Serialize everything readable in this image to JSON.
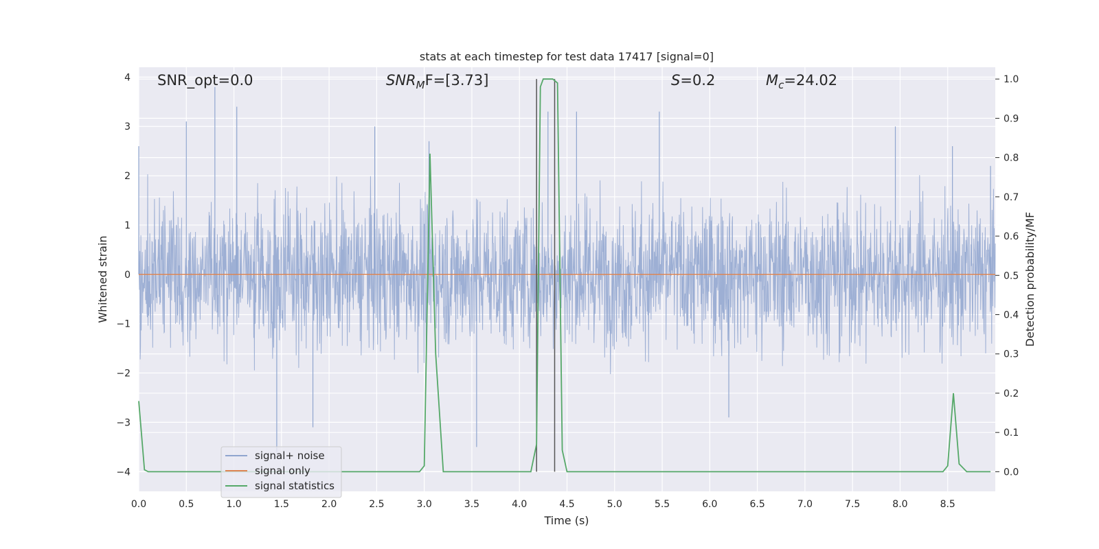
{
  "chart_data": {
    "type": "line",
    "title": "stats at each timestep for test data 17417 [signal=0]",
    "xlabel": "Time (s)",
    "ylabel_left": "Whitened strain",
    "ylabel_right": "Detection probability/MF",
    "xlim": [
      0.0,
      9.0
    ],
    "ylim_left": [
      -4.4,
      4.2
    ],
    "ylim_right": [
      -0.05,
      1.03
    ],
    "x_ticks": [
      "0.0",
      "0.5",
      "1.0",
      "1.5",
      "2.0",
      "2.5",
      "3.0",
      "3.5",
      "4.0",
      "4.5",
      "5.0",
      "5.5",
      "6.0",
      "6.5",
      "7.0",
      "7.5",
      "8.0",
      "8.5"
    ],
    "y_left_ticks": [
      "4",
      "3",
      "2",
      "1",
      "0",
      "−1",
      "−2",
      "−3",
      "−4"
    ],
    "y_right_ticks": [
      "1.0",
      "0.9",
      "0.8",
      "0.7",
      "0.6",
      "0.5",
      "0.4",
      "0.3",
      "0.2",
      "0.1",
      "0.0"
    ],
    "grid": true,
    "legend_position": "lower-left",
    "annotations": {
      "snr_opt": "SNR_opt=0.0",
      "snr_mf_base": "SNR",
      "snr_mf_sub": "M",
      "snr_mf_rest": "F=[3.73]",
      "s_italic": "S",
      "s_rest": "=0.2",
      "mc_base": "M",
      "mc_sub": "c",
      "mc_rest": "=24.02"
    },
    "series": [
      {
        "name": "signal+ noise",
        "color": "#8fa5cf",
        "axis": "left",
        "style": "dense noise, approx amplitude ±1.6 with peaks to about ±3.8",
        "envelope_peaks_x": [
          0.0,
          0.5,
          0.8,
          1.03,
          1.45,
          1.83,
          2.48,
          3.05,
          3.55,
          4.3,
          4.6,
          5.47,
          6.2,
          7.95,
          8.55,
          8.95
        ],
        "envelope_peaks_y": [
          2.6,
          3.1,
          3.8,
          3.4,
          -3.6,
          -3.1,
          3.0,
          2.7,
          -3.5,
          3.3,
          3.3,
          3.3,
          -2.9,
          3.0,
          2.6,
          2.2
        ]
      },
      {
        "name": "signal only",
        "color": "#dd8452",
        "axis": "left",
        "x": [
          0.0,
          9.0
        ],
        "y": [
          0.0,
          0.0
        ]
      },
      {
        "name": "signal statistics",
        "color": "#55a868",
        "axis": "right",
        "x": [
          0.0,
          0.06,
          0.1,
          0.15,
          2.95,
          3.0,
          3.06,
          3.12,
          3.2,
          4.12,
          4.18,
          4.22,
          4.25,
          4.3,
          4.35,
          4.4,
          4.45,
          4.5,
          8.45,
          8.5,
          8.56,
          8.62,
          8.7,
          8.95
        ],
        "y": [
          0.18,
          0.005,
          0.0,
          0.0,
          0.0,
          0.015,
          0.81,
          0.3,
          0.0,
          0.0,
          0.07,
          0.98,
          1.0,
          1.0,
          1.0,
          0.99,
          0.055,
          0.0,
          0.0,
          0.015,
          0.2,
          0.02,
          0.0,
          0.0
        ]
      }
    ],
    "vertical_markers_x": [
      4.18,
      4.37
    ],
    "marker_color": "#555555"
  }
}
